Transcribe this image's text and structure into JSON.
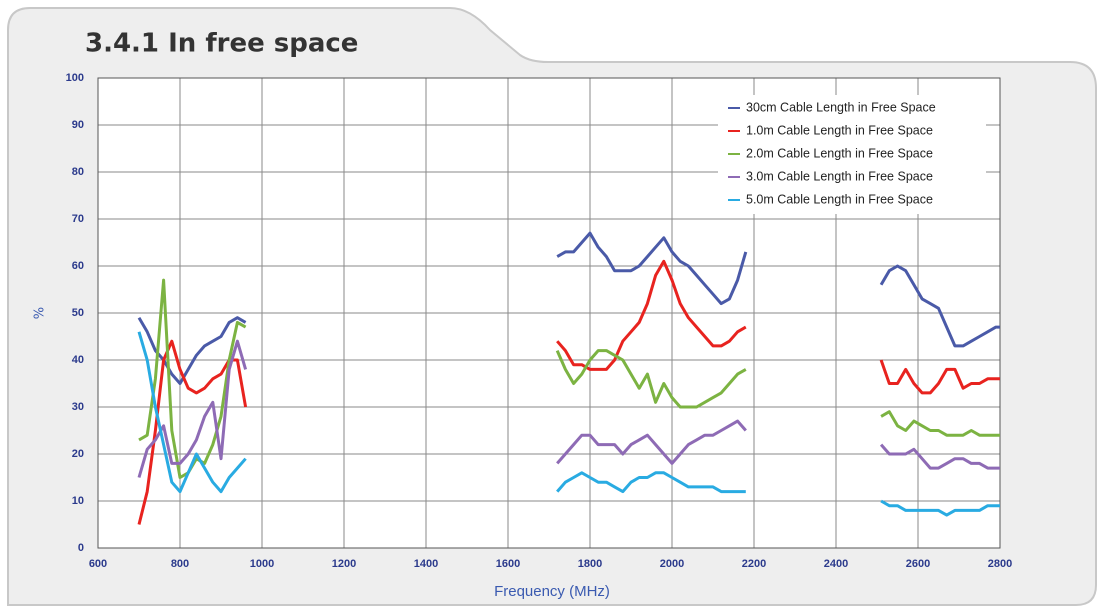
{
  "chart_data": {
    "type": "line",
    "title": "3.4.1 In free space",
    "x_label": "Frequency (MHz)",
    "y_label": "%",
    "xlim": [
      600,
      2800
    ],
    "ylim": [
      0,
      100
    ],
    "xticks": [
      600,
      800,
      1000,
      1200,
      1400,
      1600,
      1800,
      2000,
      2200,
      2400,
      2600,
      2800
    ],
    "yticks": [
      0,
      10,
      20,
      30,
      40,
      50,
      60,
      70,
      80,
      90,
      100
    ],
    "grid": true,
    "legend": "upper right",
    "x": [
      700,
      720,
      740,
      760,
      780,
      800,
      820,
      840,
      860,
      880,
      900,
      920,
      940,
      960,
      1340,
      1720,
      1740,
      1760,
      1780,
      1800,
      1820,
      1840,
      1860,
      1880,
      1900,
      1920,
      1940,
      1960,
      1980,
      2000,
      2020,
      2040,
      2060,
      2080,
      2100,
      2120,
      2140,
      2160,
      2180,
      2340,
      2510,
      2530,
      2550,
      2570,
      2590,
      2610,
      2630,
      2650,
      2670,
      2690,
      2710,
      2730,
      2750,
      2770,
      2790,
      2800
    ],
    "series": [
      {
        "name": "30cm Cable Length in Free Space",
        "color": "#4a5aa8",
        "values": [
          49,
          46,
          42,
          40,
          37,
          35,
          38,
          41,
          43,
          44,
          45,
          48,
          49,
          48,
          null,
          62,
          63,
          63,
          65,
          67,
          64,
          62,
          59,
          59,
          59,
          60,
          62,
          64,
          66,
          63,
          61,
          60,
          58,
          56,
          54,
          52,
          53,
          57,
          63,
          null,
          56,
          59,
          60,
          59,
          56,
          53,
          52,
          51,
          47,
          43,
          43,
          44,
          45,
          46,
          47,
          47
        ]
      },
      {
        "name": "1.0m Cable Length in Free Space",
        "color": "#e8231f",
        "values": [
          5,
          12,
          25,
          40,
          44,
          38,
          34,
          33,
          34,
          36,
          37,
          40,
          40,
          30,
          null,
          44,
          42,
          39,
          39,
          38,
          38,
          38,
          40,
          44,
          46,
          48,
          52,
          58,
          61,
          57,
          52,
          49,
          47,
          45,
          43,
          43,
          44,
          46,
          47,
          null,
          40,
          35,
          35,
          38,
          35,
          33,
          33,
          35,
          38,
          38,
          34,
          35,
          35,
          36,
          36,
          36
        ]
      },
      {
        "name": "2.0m Cable Length in Free Space",
        "color": "#7cb342",
        "values": [
          23,
          24,
          36,
          57,
          25,
          15,
          16,
          19,
          18,
          22,
          28,
          40,
          48,
          47,
          null,
          42,
          38,
          35,
          37,
          40,
          42,
          42,
          41,
          40,
          37,
          34,
          37,
          31,
          35,
          32,
          30,
          30,
          30,
          31,
          32,
          33,
          35,
          37,
          38,
          null,
          28,
          29,
          26,
          25,
          27,
          26,
          25,
          25,
          24,
          24,
          24,
          25,
          24,
          24,
          24,
          24
        ]
      },
      {
        "name": "3.0m Cable Length in Free Space",
        "color": "#8e6bb5",
        "values": [
          15,
          21,
          23,
          26,
          18,
          18,
          20,
          23,
          28,
          31,
          19,
          38,
          44,
          38,
          null,
          18,
          20,
          22,
          24,
          24,
          22,
          22,
          22,
          20,
          22,
          23,
          24,
          22,
          20,
          18,
          20,
          22,
          23,
          24,
          24,
          25,
          26,
          27,
          25,
          null,
          22,
          20,
          20,
          20,
          21,
          19,
          17,
          17,
          18,
          19,
          19,
          18,
          18,
          17,
          17,
          17
        ]
      },
      {
        "name": "5.0m Cable Length in Free Space",
        "color": "#29abe2",
        "values": [
          46,
          40,
          30,
          22,
          14,
          12,
          16,
          20,
          17,
          14,
          12,
          15,
          17,
          19,
          null,
          12,
          14,
          15,
          16,
          15,
          14,
          14,
          13,
          12,
          14,
          15,
          15,
          16,
          16,
          15,
          14,
          13,
          13,
          13,
          13,
          12,
          12,
          12,
          12,
          null,
          10,
          9,
          9,
          8,
          8,
          8,
          8,
          8,
          7,
          8,
          8,
          8,
          8,
          9,
          9,
          9
        ]
      }
    ]
  }
}
